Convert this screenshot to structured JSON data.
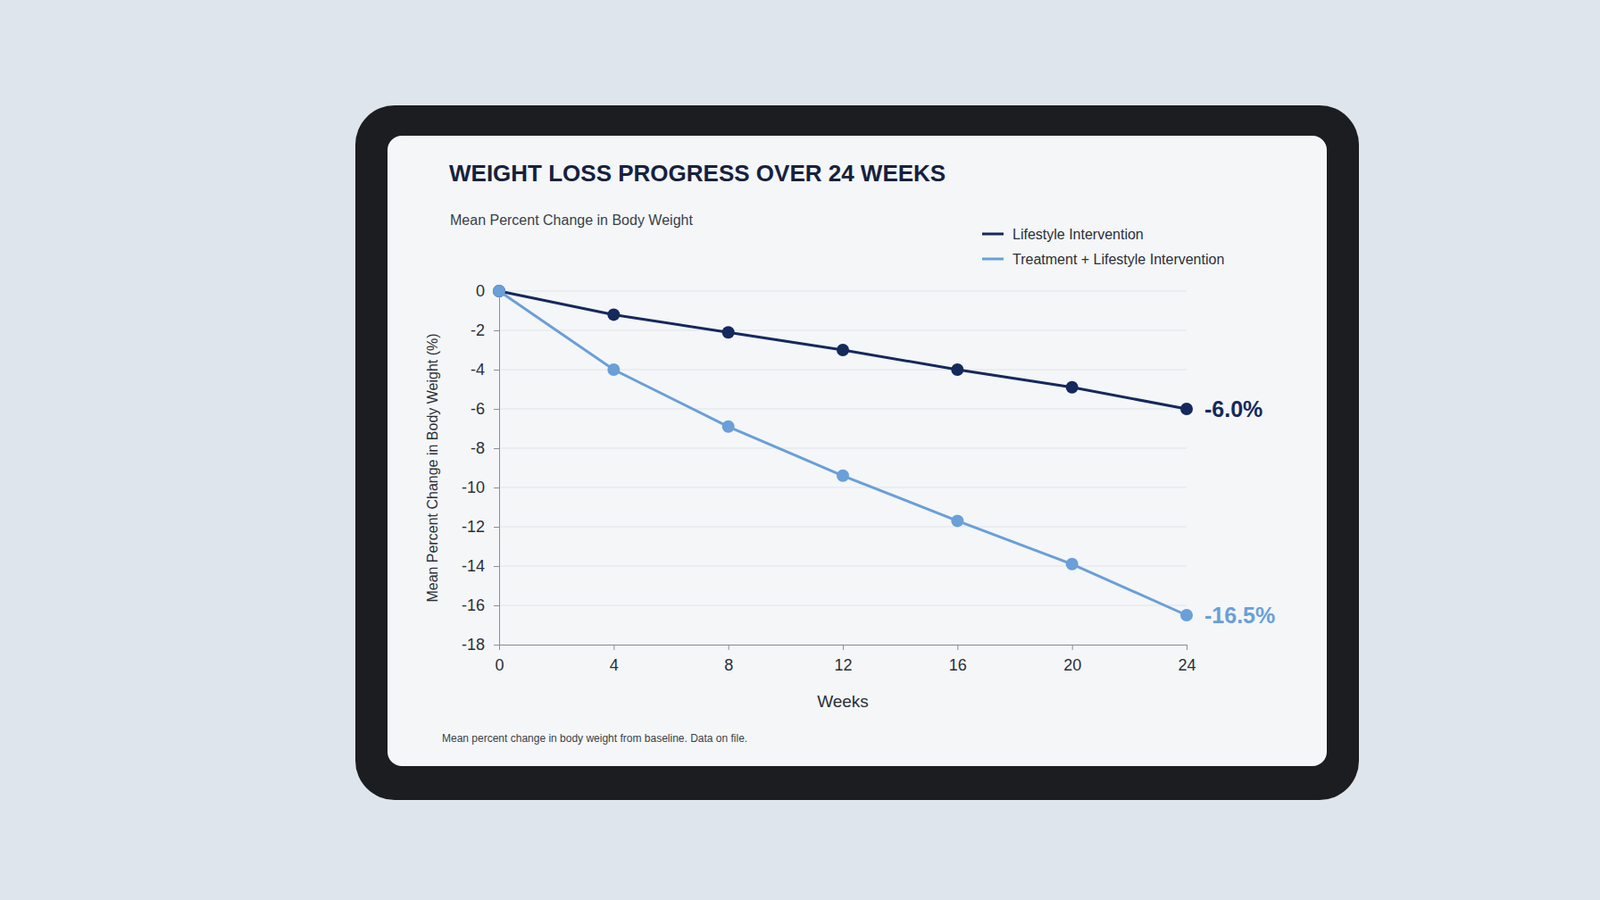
{
  "chart_data": {
    "type": "line",
    "title": "WEIGHT LOSS PROGRESS OVER 24 WEEKS",
    "subtitle": "Mean Percent Change in Body Weight",
    "x_label": "Weeks",
    "y_label": "Mean Percent Change in Body Weight (%)",
    "footnote": "Mean percent change in body weight from baseline. Data on file.",
    "x": [
      0,
      4,
      8,
      12,
      16,
      20,
      24
    ],
    "xlim": [
      0,
      24
    ],
    "xticks": [
      0,
      4,
      8,
      12,
      16,
      20,
      24
    ],
    "ylim": [
      -18,
      0
    ],
    "yticks": [
      0,
      -2,
      -4,
      -6,
      -8,
      -10,
      -12,
      -14,
      -16,
      -18
    ],
    "grid": true,
    "legend": "top-right",
    "series": [
      {
        "name": "Lifestyle Intervention",
        "color": "#14295c",
        "marker": "circle",
        "line_style": "solid",
        "values": [
          0,
          -1.2,
          -2.1,
          -3.0,
          -4.0,
          -4.9,
          -6.0
        ],
        "value_labels": [
          null,
          null,
          null,
          null,
          null,
          null,
          "-6.0%"
        ]
      },
      {
        "name": "Treatment + Lifestyle Intervention",
        "color": "#6a9fd8",
        "marker": "circle",
        "line_style": "solid",
        "values": [
          0,
          -4.0,
          -6.9,
          -9.4,
          -11.7,
          -13.9,
          -16.5
        ],
        "value_labels": [
          null,
          null,
          null,
          null,
          null,
          null,
          "-16.5%"
        ]
      }
    ]
  }
}
